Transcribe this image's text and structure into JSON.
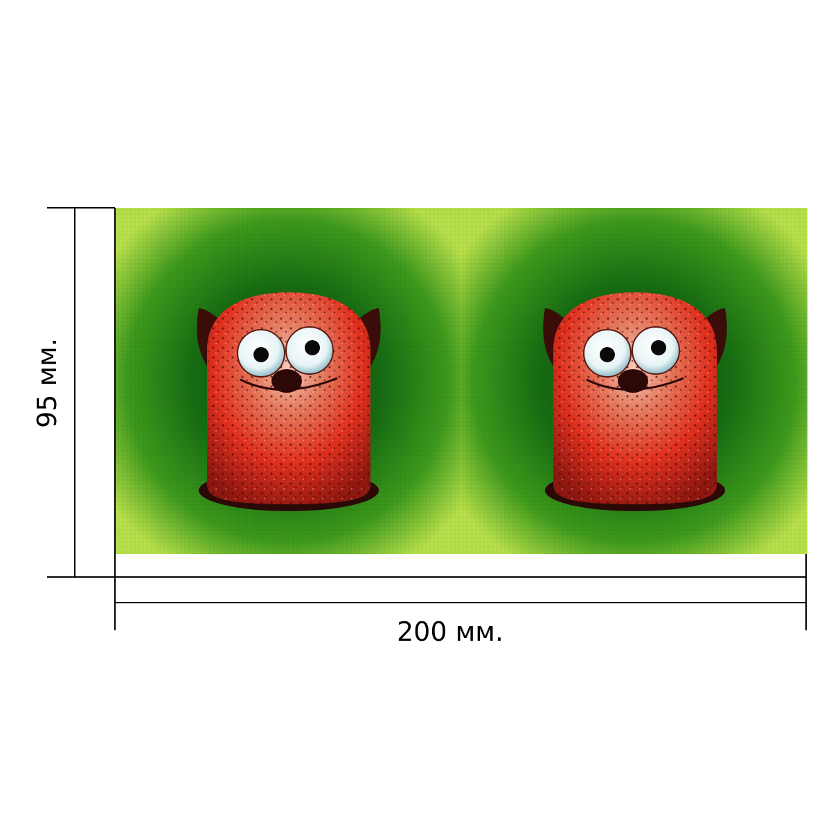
{
  "dimensions": {
    "height_label": "95 мм.",
    "width_label": "200 мм."
  },
  "print_panels": [
    {
      "subject": "red-fuzzy-monster"
    },
    {
      "subject": "red-fuzzy-monster"
    }
  ],
  "colors": {
    "background_dark": "#0f4f0c",
    "background_light": "#b7e04a",
    "monster_red": "#e0301e",
    "ears": "#3a0d08"
  }
}
